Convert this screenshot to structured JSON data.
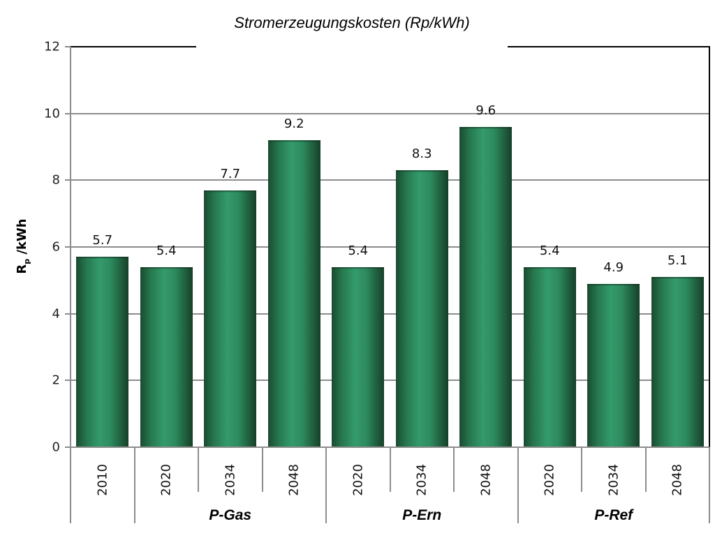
{
  "chart_data": {
    "type": "bar",
    "title": "Stromerzeugungskosten (Rp/kWh)",
    "xlabel": "",
    "ylabel": "Rp /kWh",
    "ylabel_main": "R",
    "ylabel_sub": "p",
    "ylabel_rest": " /kWh",
    "ylim": [
      0,
      12
    ],
    "yticks": [
      "0",
      "2",
      "4",
      "6",
      "8",
      "10",
      "12"
    ],
    "grid": true,
    "legend": null,
    "categories": [
      {
        "year": "2010",
        "group": ""
      },
      {
        "year": "2020",
        "group": "P-Gas"
      },
      {
        "year": "2034",
        "group": "P-Gas"
      },
      {
        "year": "2048",
        "group": "P-Gas"
      },
      {
        "year": "2020",
        "group": "P-Ern"
      },
      {
        "year": "2034",
        "group": "P-Ern"
      },
      {
        "year": "2048",
        "group": "P-Ern"
      },
      {
        "year": "2020",
        "group": "P-Ref"
      },
      {
        "year": "2034",
        "group": "P-Ref"
      },
      {
        "year": "2048",
        "group": "P-Ref"
      }
    ],
    "values": [
      5.7,
      5.4,
      7.7,
      9.2,
      5.4,
      8.3,
      9.6,
      5.4,
      4.9,
      5.1
    ],
    "value_labels": [
      "5.7",
      "5.4",
      "7.7",
      "9.2",
      "5.4",
      "8.3",
      "9.6",
      "5.4",
      "4.9",
      "5.1"
    ],
    "groups": [
      {
        "label": "",
        "start": 0,
        "end": 0
      },
      {
        "label": "P-Gas",
        "start": 1,
        "end": 3
      },
      {
        "label": "P-Ern",
        "start": 4,
        "end": 6
      },
      {
        "label": "P-Ref",
        "start": 7,
        "end": 9
      }
    ],
    "bar_color": "#2e8c5f",
    "bar_edge_color": "#173f29"
  }
}
